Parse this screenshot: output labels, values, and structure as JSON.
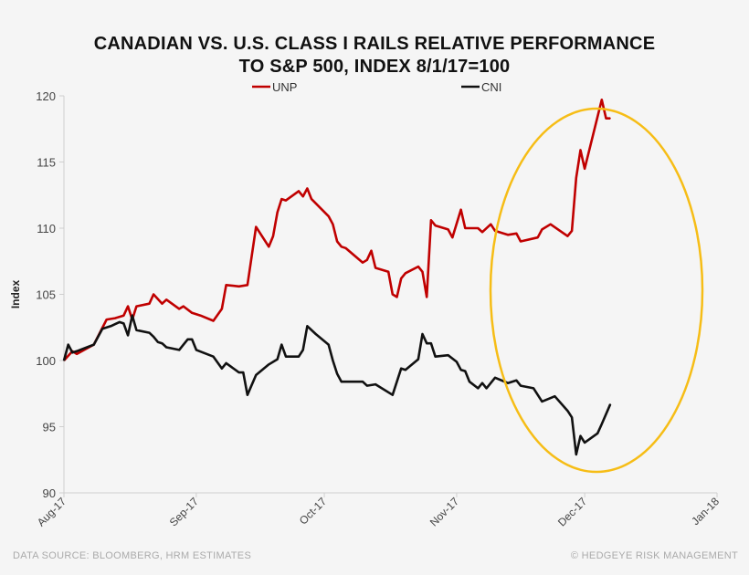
{
  "chart_data": {
    "type": "line",
    "title": "CANADIAN VS. U.S. CLASS I RAILS RELATIVE PERFORMANCE",
    "subtitle": "TO S&P 500, INDEX 8/1/17=100",
    "xlabel": "",
    "ylabel": "Index",
    "ylim": [
      90,
      120
    ],
    "yticks": [
      "90",
      "95",
      "100",
      "105",
      "110",
      "115",
      "120"
    ],
    "xlim": [
      "2017-08-01",
      "2018-01-01"
    ],
    "xticks": [
      {
        "date": "2017-08-01",
        "label": "Aug-17"
      },
      {
        "date": "2017-09-01",
        "label": "Sep-17"
      },
      {
        "date": "2017-10-01",
        "label": "Oct-17"
      },
      {
        "date": "2017-11-01",
        "label": "Nov-17"
      },
      {
        "date": "2017-12-01",
        "label": "Dec-17"
      },
      {
        "date": "2018-01-01",
        "label": "Jan-18"
      }
    ],
    "grid": false,
    "legend": "top",
    "annotation": "ellipse highlighting late Nov–Dec 2017",
    "colors": {
      "UNP": "#c00000",
      "CNI": "#111111",
      "highlight": "#f6bd16"
    },
    "series": [
      {
        "name": "UNP",
        "points": [
          [
            "2017-08-01",
            100.0
          ],
          [
            "2017-08-03",
            100.7
          ],
          [
            "2017-08-04",
            100.5
          ],
          [
            "2017-08-08",
            101.2
          ],
          [
            "2017-08-11",
            103.1
          ],
          [
            "2017-08-13",
            103.2
          ],
          [
            "2017-08-15",
            103.4
          ],
          [
            "2017-08-16",
            104.1
          ],
          [
            "2017-08-17",
            103.1
          ],
          [
            "2017-08-18",
            104.1
          ],
          [
            "2017-08-21",
            104.3
          ],
          [
            "2017-08-22",
            105.0
          ],
          [
            "2017-08-24",
            104.3
          ],
          [
            "2017-08-25",
            104.6
          ],
          [
            "2017-08-28",
            103.9
          ],
          [
            "2017-08-29",
            104.1
          ],
          [
            "2017-08-31",
            103.6
          ],
          [
            "2017-09-02",
            103.4
          ],
          [
            "2017-09-05",
            103.0
          ],
          [
            "2017-09-07",
            103.9
          ],
          [
            "2017-09-08",
            105.7
          ],
          [
            "2017-09-11",
            105.6
          ],
          [
            "2017-09-13",
            105.7
          ],
          [
            "2017-09-15",
            110.1
          ],
          [
            "2017-09-18",
            108.6
          ],
          [
            "2017-09-19",
            109.4
          ],
          [
            "2017-09-20",
            111.2
          ],
          [
            "2017-09-21",
            112.2
          ],
          [
            "2017-09-22",
            112.1
          ],
          [
            "2017-09-25",
            112.8
          ],
          [
            "2017-09-26",
            112.4
          ],
          [
            "2017-09-27",
            113.0
          ],
          [
            "2017-09-28",
            112.2
          ],
          [
            "2017-10-02",
            110.9
          ],
          [
            "2017-10-03",
            110.3
          ],
          [
            "2017-10-04",
            109.0
          ],
          [
            "2017-10-05",
            108.6
          ],
          [
            "2017-10-06",
            108.5
          ],
          [
            "2017-10-10",
            107.4
          ],
          [
            "2017-10-11",
            107.6
          ],
          [
            "2017-10-12",
            108.3
          ],
          [
            "2017-10-13",
            107.0
          ],
          [
            "2017-10-16",
            106.7
          ],
          [
            "2017-10-17",
            105.0
          ],
          [
            "2017-10-18",
            104.8
          ],
          [
            "2017-10-19",
            106.2
          ],
          [
            "2017-10-20",
            106.6
          ],
          [
            "2017-10-23",
            107.1
          ],
          [
            "2017-10-24",
            106.7
          ],
          [
            "2017-10-25",
            104.8
          ],
          [
            "2017-10-26",
            110.6
          ],
          [
            "2017-10-27",
            110.2
          ],
          [
            "2017-10-30",
            109.9
          ],
          [
            "2017-10-31",
            109.3
          ],
          [
            "2017-11-02",
            111.4
          ],
          [
            "2017-11-03",
            110.0
          ],
          [
            "2017-11-06",
            110.0
          ],
          [
            "2017-11-07",
            109.7
          ],
          [
            "2017-11-09",
            110.3
          ],
          [
            "2017-11-10",
            109.8
          ],
          [
            "2017-11-13",
            109.5
          ],
          [
            "2017-11-15",
            109.6
          ],
          [
            "2017-11-16",
            109.0
          ],
          [
            "2017-11-20",
            109.3
          ],
          [
            "2017-11-21",
            109.9
          ],
          [
            "2017-11-23",
            110.3
          ],
          [
            "2017-11-27",
            109.4
          ],
          [
            "2017-11-28",
            109.8
          ],
          [
            "2017-11-29",
            113.8
          ],
          [
            "2017-11-30",
            115.9
          ],
          [
            "2017-12-01",
            114.5
          ],
          [
            "2017-12-05",
            119.7
          ],
          [
            "2017-12-06",
            118.3
          ],
          [
            "2017-12-07",
            118.3
          ]
        ]
      },
      {
        "name": "CNI",
        "points": [
          [
            "2017-08-01",
            100.0
          ],
          [
            "2017-08-02",
            101.2
          ],
          [
            "2017-08-03",
            100.6
          ],
          [
            "2017-08-04",
            100.7
          ],
          [
            "2017-08-08",
            101.2
          ],
          [
            "2017-08-10",
            102.4
          ],
          [
            "2017-08-12",
            102.6
          ],
          [
            "2017-08-14",
            102.9
          ],
          [
            "2017-08-15",
            102.8
          ],
          [
            "2017-08-16",
            101.9
          ],
          [
            "2017-08-17",
            103.4
          ],
          [
            "2017-08-18",
            102.3
          ],
          [
            "2017-08-21",
            102.1
          ],
          [
            "2017-08-22",
            101.8
          ],
          [
            "2017-08-23",
            101.4
          ],
          [
            "2017-08-24",
            101.3
          ],
          [
            "2017-08-25",
            101.0
          ],
          [
            "2017-08-28",
            100.8
          ],
          [
            "2017-08-30",
            101.6
          ],
          [
            "2017-08-31",
            101.6
          ],
          [
            "2017-09-01",
            100.8
          ],
          [
            "2017-09-05",
            100.3
          ],
          [
            "2017-09-07",
            99.4
          ],
          [
            "2017-09-08",
            99.8
          ],
          [
            "2017-09-11",
            99.1
          ],
          [
            "2017-09-12",
            99.1
          ],
          [
            "2017-09-13",
            97.4
          ],
          [
            "2017-09-15",
            98.9
          ],
          [
            "2017-09-18",
            99.7
          ],
          [
            "2017-09-20",
            100.1
          ],
          [
            "2017-09-21",
            101.2
          ],
          [
            "2017-09-22",
            100.3
          ],
          [
            "2017-09-25",
            100.3
          ],
          [
            "2017-09-26",
            100.8
          ],
          [
            "2017-09-27",
            102.6
          ],
          [
            "2017-09-29",
            102.0
          ],
          [
            "2017-10-02",
            101.2
          ],
          [
            "2017-10-03",
            100.0
          ],
          [
            "2017-10-04",
            99.0
          ],
          [
            "2017-10-05",
            98.4
          ],
          [
            "2017-10-10",
            98.4
          ],
          [
            "2017-10-11",
            98.1
          ],
          [
            "2017-10-13",
            98.2
          ],
          [
            "2017-10-17",
            97.4
          ],
          [
            "2017-10-19",
            99.4
          ],
          [
            "2017-10-20",
            99.3
          ],
          [
            "2017-10-23",
            100.1
          ],
          [
            "2017-10-24",
            102.0
          ],
          [
            "2017-10-25",
            101.3
          ],
          [
            "2017-10-26",
            101.3
          ],
          [
            "2017-10-27",
            100.3
          ],
          [
            "2017-10-30",
            100.4
          ],
          [
            "2017-11-01",
            99.9
          ],
          [
            "2017-11-02",
            99.3
          ],
          [
            "2017-11-03",
            99.2
          ],
          [
            "2017-11-04",
            98.4
          ],
          [
            "2017-11-06",
            97.9
          ],
          [
            "2017-11-07",
            98.3
          ],
          [
            "2017-11-08",
            97.9
          ],
          [
            "2017-11-10",
            98.7
          ],
          [
            "2017-11-13",
            98.3
          ],
          [
            "2017-11-15",
            98.5
          ],
          [
            "2017-11-16",
            98.1
          ],
          [
            "2017-11-19",
            97.9
          ],
          [
            "2017-11-21",
            96.9
          ],
          [
            "2017-11-24",
            97.3
          ],
          [
            "2017-11-27",
            96.2
          ],
          [
            "2017-11-28",
            95.7
          ],
          [
            "2017-11-29",
            92.9
          ],
          [
            "2017-11-30",
            94.3
          ],
          [
            "2017-12-01",
            93.8
          ],
          [
            "2017-12-04",
            94.5
          ],
          [
            "2017-12-05",
            95.2
          ],
          [
            "2017-12-07",
            96.7
          ]
        ]
      }
    ]
  },
  "footer": {
    "source": "DATA SOURCE: BLOOMBERG, HRM ESTIMATES",
    "copyright": "© HEDGEYE RISK MANAGEMENT"
  }
}
